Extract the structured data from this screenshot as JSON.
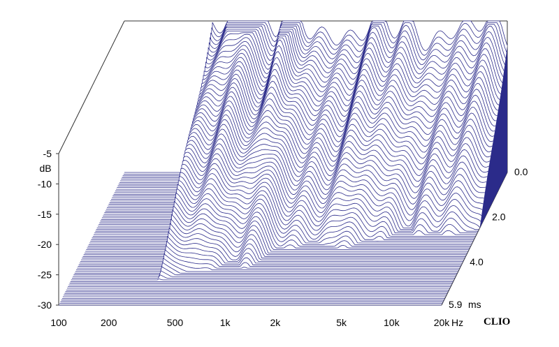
{
  "chart_data": {
    "type": "waterfall-3d",
    "x_ticks": [
      {
        "value": 100,
        "label": "100"
      },
      {
        "value": 200,
        "label": "200"
      },
      {
        "value": 500,
        "label": "500"
      },
      {
        "value": 1000,
        "label": "1k"
      },
      {
        "value": 2000,
        "label": "2k"
      },
      {
        "value": 5000,
        "label": "5k"
      },
      {
        "value": 10000,
        "label": "10k"
      },
      {
        "value": 20000,
        "label": "20k"
      }
    ],
    "x_unit": "Hz",
    "x_scale": "log",
    "xlim": [
      100,
      20000
    ],
    "y_ticks": [
      {
        "value": -5,
        "label": "-5"
      },
      {
        "value": -10,
        "label": "-10"
      },
      {
        "value": -15,
        "label": "-15"
      },
      {
        "value": -20,
        "label": "-20"
      },
      {
        "value": -25,
        "label": "-25"
      },
      {
        "value": -30,
        "label": "-30"
      }
    ],
    "y_unit": "dB",
    "ylim": [
      -30,
      -5
    ],
    "z_ticks": [
      {
        "value": 0.0,
        "label": "0.0"
      },
      {
        "value": 2.0,
        "label": "2.0"
      },
      {
        "value": 4.0,
        "label": "4.0"
      },
      {
        "value": 5.9,
        "label": "5.9"
      }
    ],
    "z_unit": "ms",
    "zlim": [
      0,
      5.9
    ],
    "brand": "CLIO",
    "line_color": "#2b2b8a",
    "floor_color": "#9d9dd2",
    "slice_count": 80
  }
}
